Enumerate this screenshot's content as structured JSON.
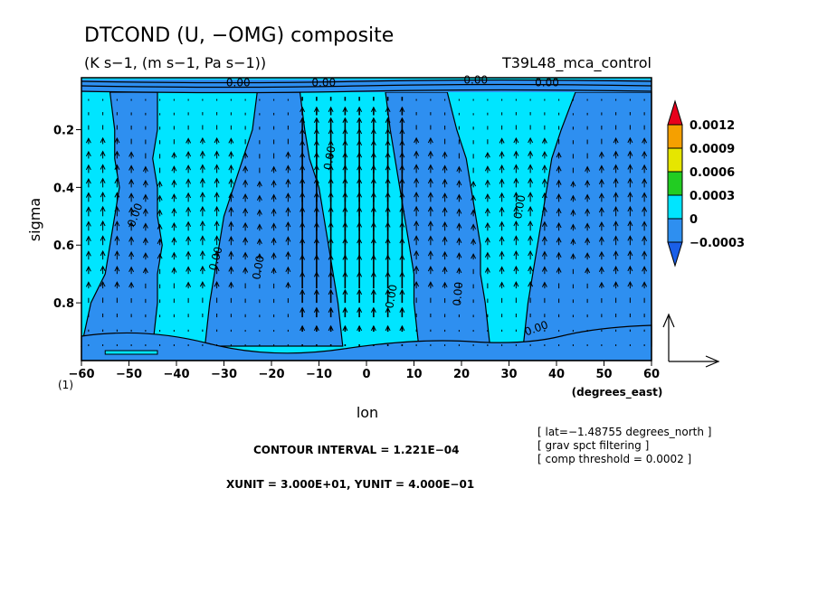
{
  "chart_data": {
    "type": "heatmap",
    "title": "DTCOND (U, −OMG) composite",
    "subtitle": "(K s−1, (m s−1, Pa s−1))",
    "run_label": "T39L48_mca_control",
    "xlabel": "lon",
    "xunit_label": "(degrees_east)",
    "ylabel": "sigma",
    "panel_index": "(1)",
    "xlim": [
      -60,
      60
    ],
    "ylim": [
      1.0,
      0.02
    ],
    "x_ticks": [
      -60,
      -50,
      -40,
      -30,
      -20,
      -10,
      0,
      10,
      20,
      30,
      40,
      50,
      60
    ],
    "x_tick_labels": [
      "−60",
      "−50",
      "−40",
      "−30",
      "−20",
      "−10",
      "0",
      "10",
      "20",
      "30",
      "40",
      "50",
      "60"
    ],
    "y_ticks": [
      0.2,
      0.4,
      0.6,
      0.8
    ],
    "y_tick_labels": [
      "0.2",
      "0.4",
      "0.6",
      "0.8"
    ],
    "colorbar": {
      "labels": [
        "0.0012",
        "0.0009",
        "0.0006",
        "0.0003",
        "0",
        "−0.0003"
      ],
      "colors": [
        "#e8001c",
        "#f5a000",
        "#e6e600",
        "#22cc22",
        "#00e5ff",
        "#2e8ff0",
        "#1a5fe8"
      ]
    },
    "fill_colors": {
      "positive": "#00e5ff",
      "negative": "#2e8ff0"
    },
    "negative_bands": [
      {
        "name": "band-west",
        "left": [
          -54,
          -53,
          -53,
          -52,
          -53,
          -54,
          -55,
          -58,
          -60
        ],
        "right": [
          -44,
          -44,
          -45,
          -44,
          -44,
          -43,
          -44,
          -44,
          -45
        ]
      },
      {
        "name": "band-mid-west",
        "left": [
          -23,
          -24,
          -26,
          -28,
          -30,
          -31,
          -32,
          -33,
          -34
        ],
        "right": [
          -14,
          -13,
          -12,
          -10,
          -9,
          -8,
          -7,
          -6,
          -5
        ]
      },
      {
        "name": "band-central",
        "left": [
          4,
          5,
          6,
          7,
          8,
          9,
          10,
          10,
          11
        ],
        "right": [
          17,
          19,
          21,
          22,
          23,
          24,
          24,
          25,
          26
        ]
      },
      {
        "name": "band-east",
        "left": [
          44,
          41,
          39,
          38,
          37,
          36,
          35,
          34,
          33
        ],
        "right": [
          60,
          60,
          60,
          60,
          60,
          60,
          60,
          60,
          60
        ]
      }
    ],
    "band_sigma": [
      0.07,
      0.2,
      0.3,
      0.4,
      0.5,
      0.6,
      0.7,
      0.8,
      0.95
    ],
    "contour_labels": [
      {
        "text": "0.00",
        "x": -27,
        "sigma": 0.05,
        "angle": 0
      },
      {
        "text": "0.00",
        "x": -9,
        "sigma": 0.05,
        "angle": 0
      },
      {
        "text": "0.00",
        "x": 23,
        "sigma": 0.04,
        "angle": 0
      },
      {
        "text": "0.00",
        "x": 38,
        "sigma": 0.05,
        "angle": 0
      },
      {
        "text": "0.00",
        "x": -7,
        "sigma": 0.3,
        "angle": -80
      },
      {
        "text": "0.00",
        "x": -48,
        "sigma": 0.5,
        "angle": -70
      },
      {
        "text": "0.00",
        "x": -31,
        "sigma": 0.65,
        "angle": -75
      },
      {
        "text": "0.00",
        "x": -22,
        "sigma": 0.68,
        "angle": -80
      },
      {
        "text": "0.00",
        "x": 6,
        "sigma": 0.78,
        "angle": -80
      },
      {
        "text": "0.00",
        "x": 20,
        "sigma": 0.77,
        "angle": -85
      },
      {
        "text": "0.00",
        "x": 33,
        "sigma": 0.47,
        "angle": -80
      },
      {
        "text": "0.00",
        "x": 36,
        "sigma": 0.9,
        "angle": -20
      }
    ],
    "vector_field": {
      "description": "ascending flow strongest between lon -15 and 10",
      "x_spacing": 3,
      "sigma_spacing": 0.05,
      "core_lon": [
        -15,
        10
      ],
      "core_strength": 1.0
    },
    "reference_vector": {
      "xunit": "3.000E+01",
      "yunit": "4.000E-01"
    },
    "info": {
      "contour_interval": "CONTOUR INTERVAL = 1.221E−04",
      "units": "XUNIT = 3.000E+01, YUNIT = 4.000E−01",
      "notes": [
        "[ lat=−1.48755 degrees_north ]",
        "[ grav spct filtering ]",
        "[ comp threshold = 0.0002 ]"
      ]
    }
  }
}
